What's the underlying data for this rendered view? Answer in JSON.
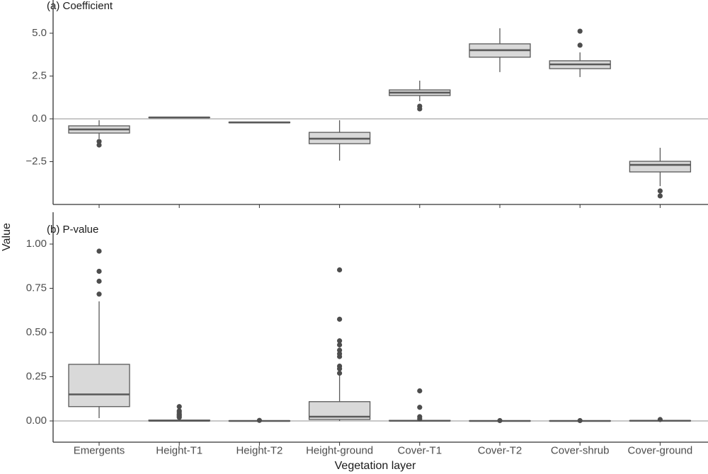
{
  "xlabel": "Vegetation layer",
  "ylabel": "Value",
  "categories": [
    "Emergents",
    "Height-T1",
    "Height-T2",
    "Height-ground",
    "Cover-T1",
    "Cover-T2",
    "Cover-shrub",
    "Cover-ground"
  ],
  "chart_data": [
    {
      "type": "box",
      "title": "(a) Coefficient",
      "fill": "#d9d9d9",
      "stroke": "#595959",
      "point_color": "#4d4d4d",
      "ylim": [
        -5.0,
        6.94
      ],
      "yticks": [
        {
          "value": -2.5,
          "label": "−2.5"
        },
        {
          "value": 0,
          "label": "0.0"
        },
        {
          "value": 2.5,
          "label": "2.5"
        },
        {
          "value": 5,
          "label": "5.0"
        }
      ],
      "hline": 0,
      "boxes": [
        {
          "min": -1.16,
          "q1": -0.83,
          "median": -0.62,
          "q3": -0.41,
          "max": -0.08,
          "outliers": [
            -1.32,
            -1.53
          ]
        },
        {
          "min": 0.05,
          "q1": 0.07,
          "median": 0.08,
          "q3": 0.09,
          "max": 0.11,
          "outliers": []
        },
        {
          "min": -0.25,
          "q1": -0.23,
          "median": -0.21,
          "q3": -0.19,
          "max": -0.17,
          "outliers": []
        },
        {
          "min": -2.44,
          "q1": -1.45,
          "median": -1.16,
          "q3": -0.79,
          "max": -0.08,
          "outliers": []
        },
        {
          "min": 1.03,
          "q1": 1.36,
          "median": 1.53,
          "q3": 1.69,
          "max": 2.23,
          "outliers": [
            0.74,
            0.58
          ]
        },
        {
          "min": 2.73,
          "q1": 3.6,
          "median": 4.01,
          "q3": 4.38,
          "max": 5.29,
          "outliers": []
        },
        {
          "min": 2.44,
          "q1": 2.93,
          "median": 3.18,
          "q3": 3.39,
          "max": 3.88,
          "outliers": [
            5.12,
            4.3
          ]
        },
        {
          "min": -3.93,
          "q1": -3.1,
          "median": -2.69,
          "q3": -2.48,
          "max": -1.69,
          "outliers": [
            -4.21,
            -4.5
          ]
        }
      ]
    },
    {
      "type": "box",
      "title": "(b) P-value",
      "fill": "#d9d9d9",
      "stroke": "#595959",
      "point_color": "#4d4d4d",
      "ylim": [
        -0.12,
        1.18
      ],
      "yticks": [
        {
          "value": 0,
          "label": "0.00"
        },
        {
          "value": 0.25,
          "label": "0.25"
        },
        {
          "value": 0.5,
          "label": "0.50"
        },
        {
          "value": 0.75,
          "label": "0.75"
        },
        {
          "value": 1,
          "label": "1.00"
        }
      ],
      "hline": 0,
      "boxes": [
        {
          "min": 0.016,
          "q1": 0.081,
          "median": 0.15,
          "q3": 0.32,
          "max": 0.676,
          "outliers": [
            0.96,
            0.846,
            0.79,
            0.717
          ]
        },
        {
          "min": 0,
          "q1": 0,
          "median": 0.001,
          "q3": 0.005,
          "max": 0.012,
          "outliers": [
            0.081,
            0.057,
            0.05,
            0.04,
            0.035,
            0.03,
            0.024,
            0.02
          ]
        },
        {
          "min": 0,
          "q1": 0,
          "median": 0,
          "q3": 0.001,
          "max": 0.002,
          "outliers": [
            0.003
          ]
        },
        {
          "min": 0,
          "q1": 0.008,
          "median": 0.024,
          "q3": 0.109,
          "max": 0.263,
          "outliers": [
            0.854,
            0.575,
            0.453,
            0.43,
            0.4,
            0.38,
            0.364,
            0.31,
            0.295,
            0.27
          ]
        },
        {
          "min": 0,
          "q1": 0,
          "median": 0.001,
          "q3": 0.003,
          "max": 0.008,
          "outliers": [
            0.17,
            0.077,
            0.024,
            0.012
          ]
        },
        {
          "min": 0,
          "q1": 0,
          "median": 0,
          "q3": 0.001,
          "max": 0.001,
          "outliers": [
            0.002
          ]
        },
        {
          "min": 0,
          "q1": 0,
          "median": 0,
          "q3": 0.001,
          "max": 0.001,
          "outliers": [
            0.002
          ]
        },
        {
          "min": 0,
          "q1": 0,
          "median": 0.001,
          "q3": 0.002,
          "max": 0.003,
          "outliers": [
            0.008
          ]
        }
      ]
    }
  ]
}
